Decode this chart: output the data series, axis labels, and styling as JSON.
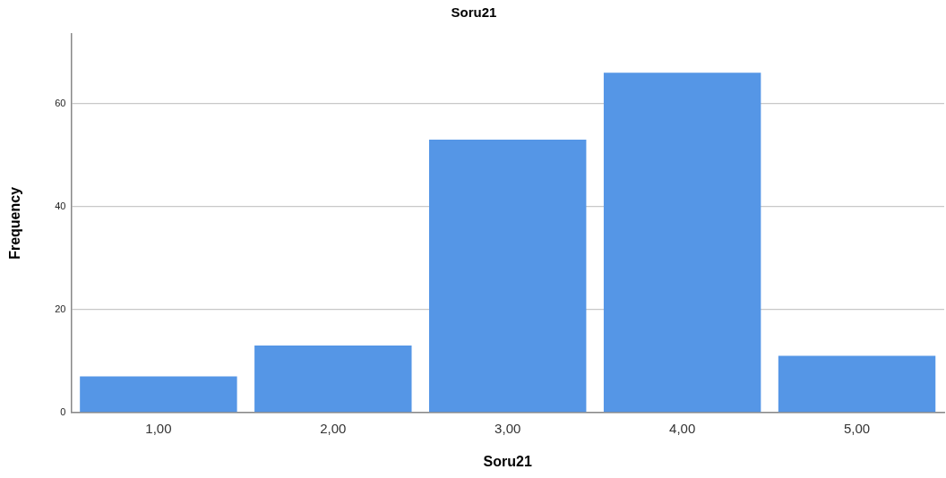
{
  "chart_data": {
    "type": "bar",
    "title": "Soru21",
    "xlabel": "Soru21",
    "ylabel": "Frequency",
    "categories": [
      "1,00",
      "2,00",
      "3,00",
      "4,00",
      "5,00"
    ],
    "values": [
      7,
      13,
      53,
      66,
      11
    ],
    "color": "#5596e6",
    "ylim": [
      0,
      73.5
    ],
    "yticks": [
      0,
      20,
      40,
      60
    ],
    "grid": "y"
  }
}
